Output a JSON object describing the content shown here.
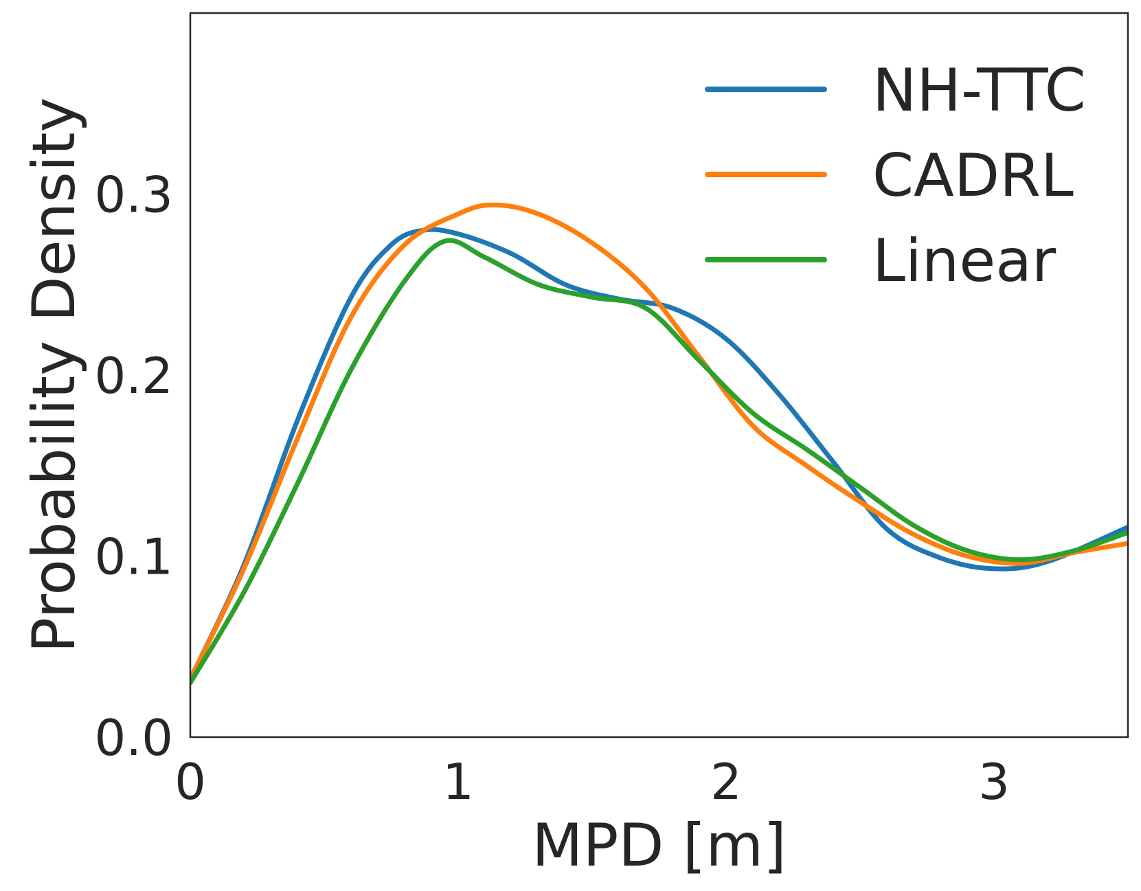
{
  "chart_data": {
    "type": "line",
    "title": "",
    "xlabel": "MPD [m]",
    "ylabel": "Probability Density",
    "xlim": [
      0,
      3.5
    ],
    "ylim": [
      0,
      0.4
    ],
    "xticks": [
      0,
      1,
      2,
      3
    ],
    "xtick_labels": [
      "0",
      "1",
      "2",
      "3"
    ],
    "yticks": [
      0.0,
      0.1,
      0.2,
      0.3
    ],
    "ytick_labels": [
      "0.0",
      "0.1",
      "0.2",
      "0.3"
    ],
    "grid": false,
    "legend_position": "top-right",
    "series": [
      {
        "name": "NH-TTC",
        "color": "#1f77b4",
        "x": [
          0,
          0.2,
          0.4,
          0.6,
          0.75,
          0.87,
          1.0,
          1.2,
          1.4,
          1.6,
          1.8,
          2.0,
          2.2,
          2.4,
          2.6,
          2.8,
          3.0,
          3.2,
          3.5
        ],
        "y": [
          0.032,
          0.095,
          0.175,
          0.243,
          0.272,
          0.28,
          0.278,
          0.267,
          0.25,
          0.242,
          0.237,
          0.22,
          0.189,
          0.152,
          0.115,
          0.099,
          0.093,
          0.097,
          0.116
        ]
      },
      {
        "name": "CADRL",
        "color": "#ff7f0e",
        "x": [
          0,
          0.2,
          0.4,
          0.6,
          0.8,
          1.0,
          1.13,
          1.3,
          1.5,
          1.7,
          1.9,
          2.1,
          2.3,
          2.5,
          2.7,
          2.9,
          3.1,
          3.3,
          3.5
        ],
        "y": [
          0.032,
          0.093,
          0.165,
          0.232,
          0.272,
          0.289,
          0.294,
          0.289,
          0.273,
          0.248,
          0.21,
          0.172,
          0.15,
          0.13,
          0.112,
          0.1,
          0.096,
          0.102,
          0.107
        ]
      },
      {
        "name": "Linear",
        "color": "#2ca02c",
        "x": [
          0,
          0.2,
          0.4,
          0.6,
          0.8,
          0.95,
          1.1,
          1.3,
          1.5,
          1.7,
          1.9,
          2.1,
          2.3,
          2.5,
          2.7,
          2.9,
          3.1,
          3.3,
          3.5
        ],
        "y": [
          0.03,
          0.08,
          0.14,
          0.203,
          0.252,
          0.274,
          0.265,
          0.25,
          0.243,
          0.237,
          0.208,
          0.179,
          0.159,
          0.138,
          0.117,
          0.103,
          0.098,
          0.103,
          0.113
        ]
      }
    ]
  }
}
